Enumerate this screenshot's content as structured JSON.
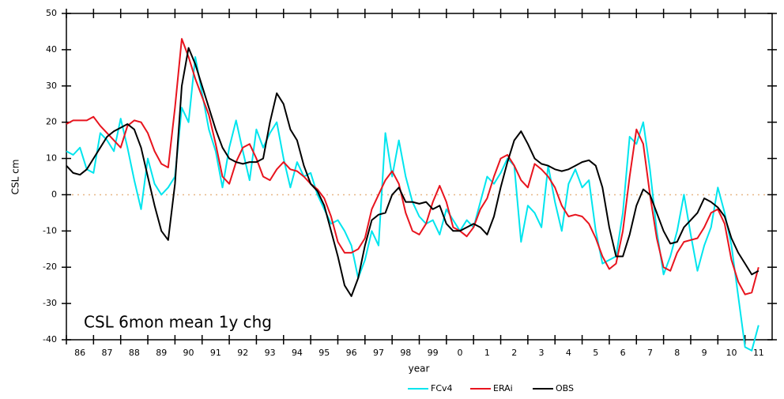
{
  "chart_data": {
    "type": "line",
    "annotation": "CSL 6mon mean 1y chg",
    "xlabel": "year",
    "ylabel": "CSL cm",
    "x": [
      1986,
      1986.25,
      1986.5,
      1986.75,
      1987,
      1987.25,
      1987.5,
      1987.75,
      1988,
      1988.25,
      1988.5,
      1988.75,
      1989,
      1989.25,
      1989.5,
      1989.75,
      1990,
      1990.25,
      1990.5,
      1990.75,
      1991,
      1991.25,
      1991.5,
      1991.75,
      1992,
      1992.25,
      1992.5,
      1992.75,
      1993,
      1993.25,
      1993.5,
      1993.75,
      1994,
      1994.25,
      1994.5,
      1994.75,
      1995,
      1995.25,
      1995.5,
      1995.75,
      1996,
      1996.25,
      1996.5,
      1996.75,
      1997,
      1997.25,
      1997.5,
      1997.75,
      1998,
      1998.25,
      1998.5,
      1998.75,
      1999,
      1999.25,
      1999.5,
      1999.75,
      2000,
      2000.25,
      2000.5,
      2000.75,
      2001,
      2001.25,
      2001.5,
      2001.75,
      2002,
      2002.25,
      2002.5,
      2002.75,
      2003,
      2003.25,
      2003.5,
      2003.75,
      2004,
      2004.25,
      2004.5,
      2004.75,
      2005,
      2005.25,
      2005.5,
      2005.75,
      2006,
      2006.25,
      2006.5,
      2006.75,
      2007,
      2007.25,
      2007.5,
      2007.75,
      2008,
      2008.25,
      2008.5,
      2008.75,
      2009,
      2009.25,
      2009.5,
      2009.75,
      2010,
      2010.25,
      2010.5,
      2010.75,
      2011,
      2011.25,
      2011.5
    ],
    "series": [
      {
        "name": "FCv4",
        "color": "#00e5ee",
        "values": [
          12,
          11,
          13,
          7,
          6,
          17,
          15,
          12,
          21,
          13,
          4,
          -4,
          10,
          3,
          0,
          2,
          5,
          24,
          20,
          38,
          28,
          18,
          12,
          2,
          13,
          20.5,
          12,
          4,
          18,
          13,
          17,
          20,
          10,
          2,
          9,
          5,
          6,
          0,
          -4,
          -8,
          -7,
          -10,
          -14,
          -23,
          -18,
          -10,
          -14,
          17,
          5,
          15,
          5,
          -2,
          -6,
          -8,
          -7,
          -11,
          -4,
          -7,
          -10,
          -7,
          -9,
          -2,
          5,
          3,
          6,
          10,
          8,
          -13,
          -3,
          -5,
          -9,
          8,
          -2,
          -10,
          3,
          7,
          2,
          4,
          -10,
          -19,
          -18,
          -17,
          -5,
          16,
          14,
          20,
          7,
          -10,
          -22,
          -17,
          -10,
          0,
          -11,
          -21,
          -14,
          -9,
          2,
          -5,
          -14,
          -28,
          -42,
          -43,
          -36
        ]
      },
      {
        "name": "ERAi",
        "color": "#e8141e",
        "values": [
          19.5,
          20.5,
          20.5,
          20.5,
          21.5,
          19,
          17,
          15,
          13,
          19,
          20.5,
          20,
          17,
          12,
          8.5,
          7.5,
          24,
          43,
          38,
          32,
          27,
          22,
          14,
          5,
          3,
          9,
          13,
          14,
          10,
          5,
          4,
          7,
          9,
          7,
          6.5,
          5,
          3,
          1.5,
          -1,
          -6,
          -13,
          -16,
          -16,
          -15,
          -12,
          -4,
          0,
          4,
          6.5,
          3,
          -5,
          -10,
          -11,
          -8,
          -2,
          2.5,
          -2,
          -9,
          -10,
          -11.5,
          -9,
          -4,
          -1,
          5,
          10,
          11,
          8,
          4,
          2,
          8.5,
          7,
          5,
          2,
          -3,
          -6,
          -5.5,
          -6,
          -8,
          -12,
          -17,
          -20.5,
          -19,
          -10,
          5,
          18,
          14,
          0,
          -12,
          -20,
          -21,
          -16,
          -13,
          -12.5,
          -12,
          -9,
          -5,
          -4,
          -8,
          -18,
          -24,
          -27.5,
          -27,
          -20
        ]
      },
      {
        "name": "OBS",
        "color": "#000000",
        "values": [
          8,
          6,
          5.5,
          7,
          10,
          13,
          16,
          17.5,
          18.5,
          19.5,
          18,
          13,
          5,
          -3,
          -10,
          -12.5,
          3,
          30,
          40.5,
          36,
          30,
          24,
          18,
          13,
          10,
          9,
          8.5,
          9,
          9,
          10,
          20,
          28,
          25,
          18,
          15,
          8,
          3,
          1,
          -3,
          -10,
          -17,
          -25,
          -28,
          -23,
          -14,
          -7,
          -5.5,
          -5,
          0,
          2,
          -2,
          -2,
          -2.5,
          -2,
          -4,
          -3,
          -8,
          -10,
          -10,
          -9,
          -8,
          -9,
          -11,
          -6,
          2,
          9,
          15,
          17.5,
          14,
          10,
          8.5,
          8,
          7,
          6.5,
          7,
          8,
          9,
          9.5,
          8,
          2,
          -9,
          -17,
          -17,
          -11,
          -3,
          1.5,
          0,
          -5,
          -10,
          -13.5,
          -13,
          -9,
          -7,
          -5,
          -1,
          -2,
          -3.5,
          -6,
          -12,
          -16,
          -19,
          -22,
          -21
        ]
      }
    ],
    "xlim": [
      1986,
      2012
    ],
    "xticks": [
      {
        "value": 1986,
        "label": "86"
      },
      {
        "value": 1987,
        "label": "87"
      },
      {
        "value": 1988,
        "label": "88"
      },
      {
        "value": 1989,
        "label": "89"
      },
      {
        "value": 1990,
        "label": "90"
      },
      {
        "value": 1991,
        "label": "91"
      },
      {
        "value": 1992,
        "label": "92"
      },
      {
        "value": 1993,
        "label": "93"
      },
      {
        "value": 1994,
        "label": "94"
      },
      {
        "value": 1995,
        "label": "95"
      },
      {
        "value": 1996,
        "label": "96"
      },
      {
        "value": 1997,
        "label": "97"
      },
      {
        "value": 1998,
        "label": "98"
      },
      {
        "value": 1999,
        "label": "99"
      },
      {
        "value": 2000,
        "label": "0"
      },
      {
        "value": 2001,
        "label": "1"
      },
      {
        "value": 2002,
        "label": "2"
      },
      {
        "value": 2003,
        "label": "3"
      },
      {
        "value": 2004,
        "label": "4"
      },
      {
        "value": 2005,
        "label": "5"
      },
      {
        "value": 2006,
        "label": "6"
      },
      {
        "value": 2007,
        "label": "7"
      },
      {
        "value": 2008,
        "label": "8"
      },
      {
        "value": 2009,
        "label": "9"
      },
      {
        "value": 2010,
        "label": "10"
      },
      {
        "value": 2011,
        "label": "11"
      }
    ],
    "ylim": [
      -40,
      50
    ],
    "yticks": [
      -40,
      -30,
      -20,
      -10,
      0,
      10,
      20,
      30,
      40,
      50
    ],
    "zero_line": true,
    "zero_line_color": "#e8b888",
    "legend": "bottom"
  }
}
